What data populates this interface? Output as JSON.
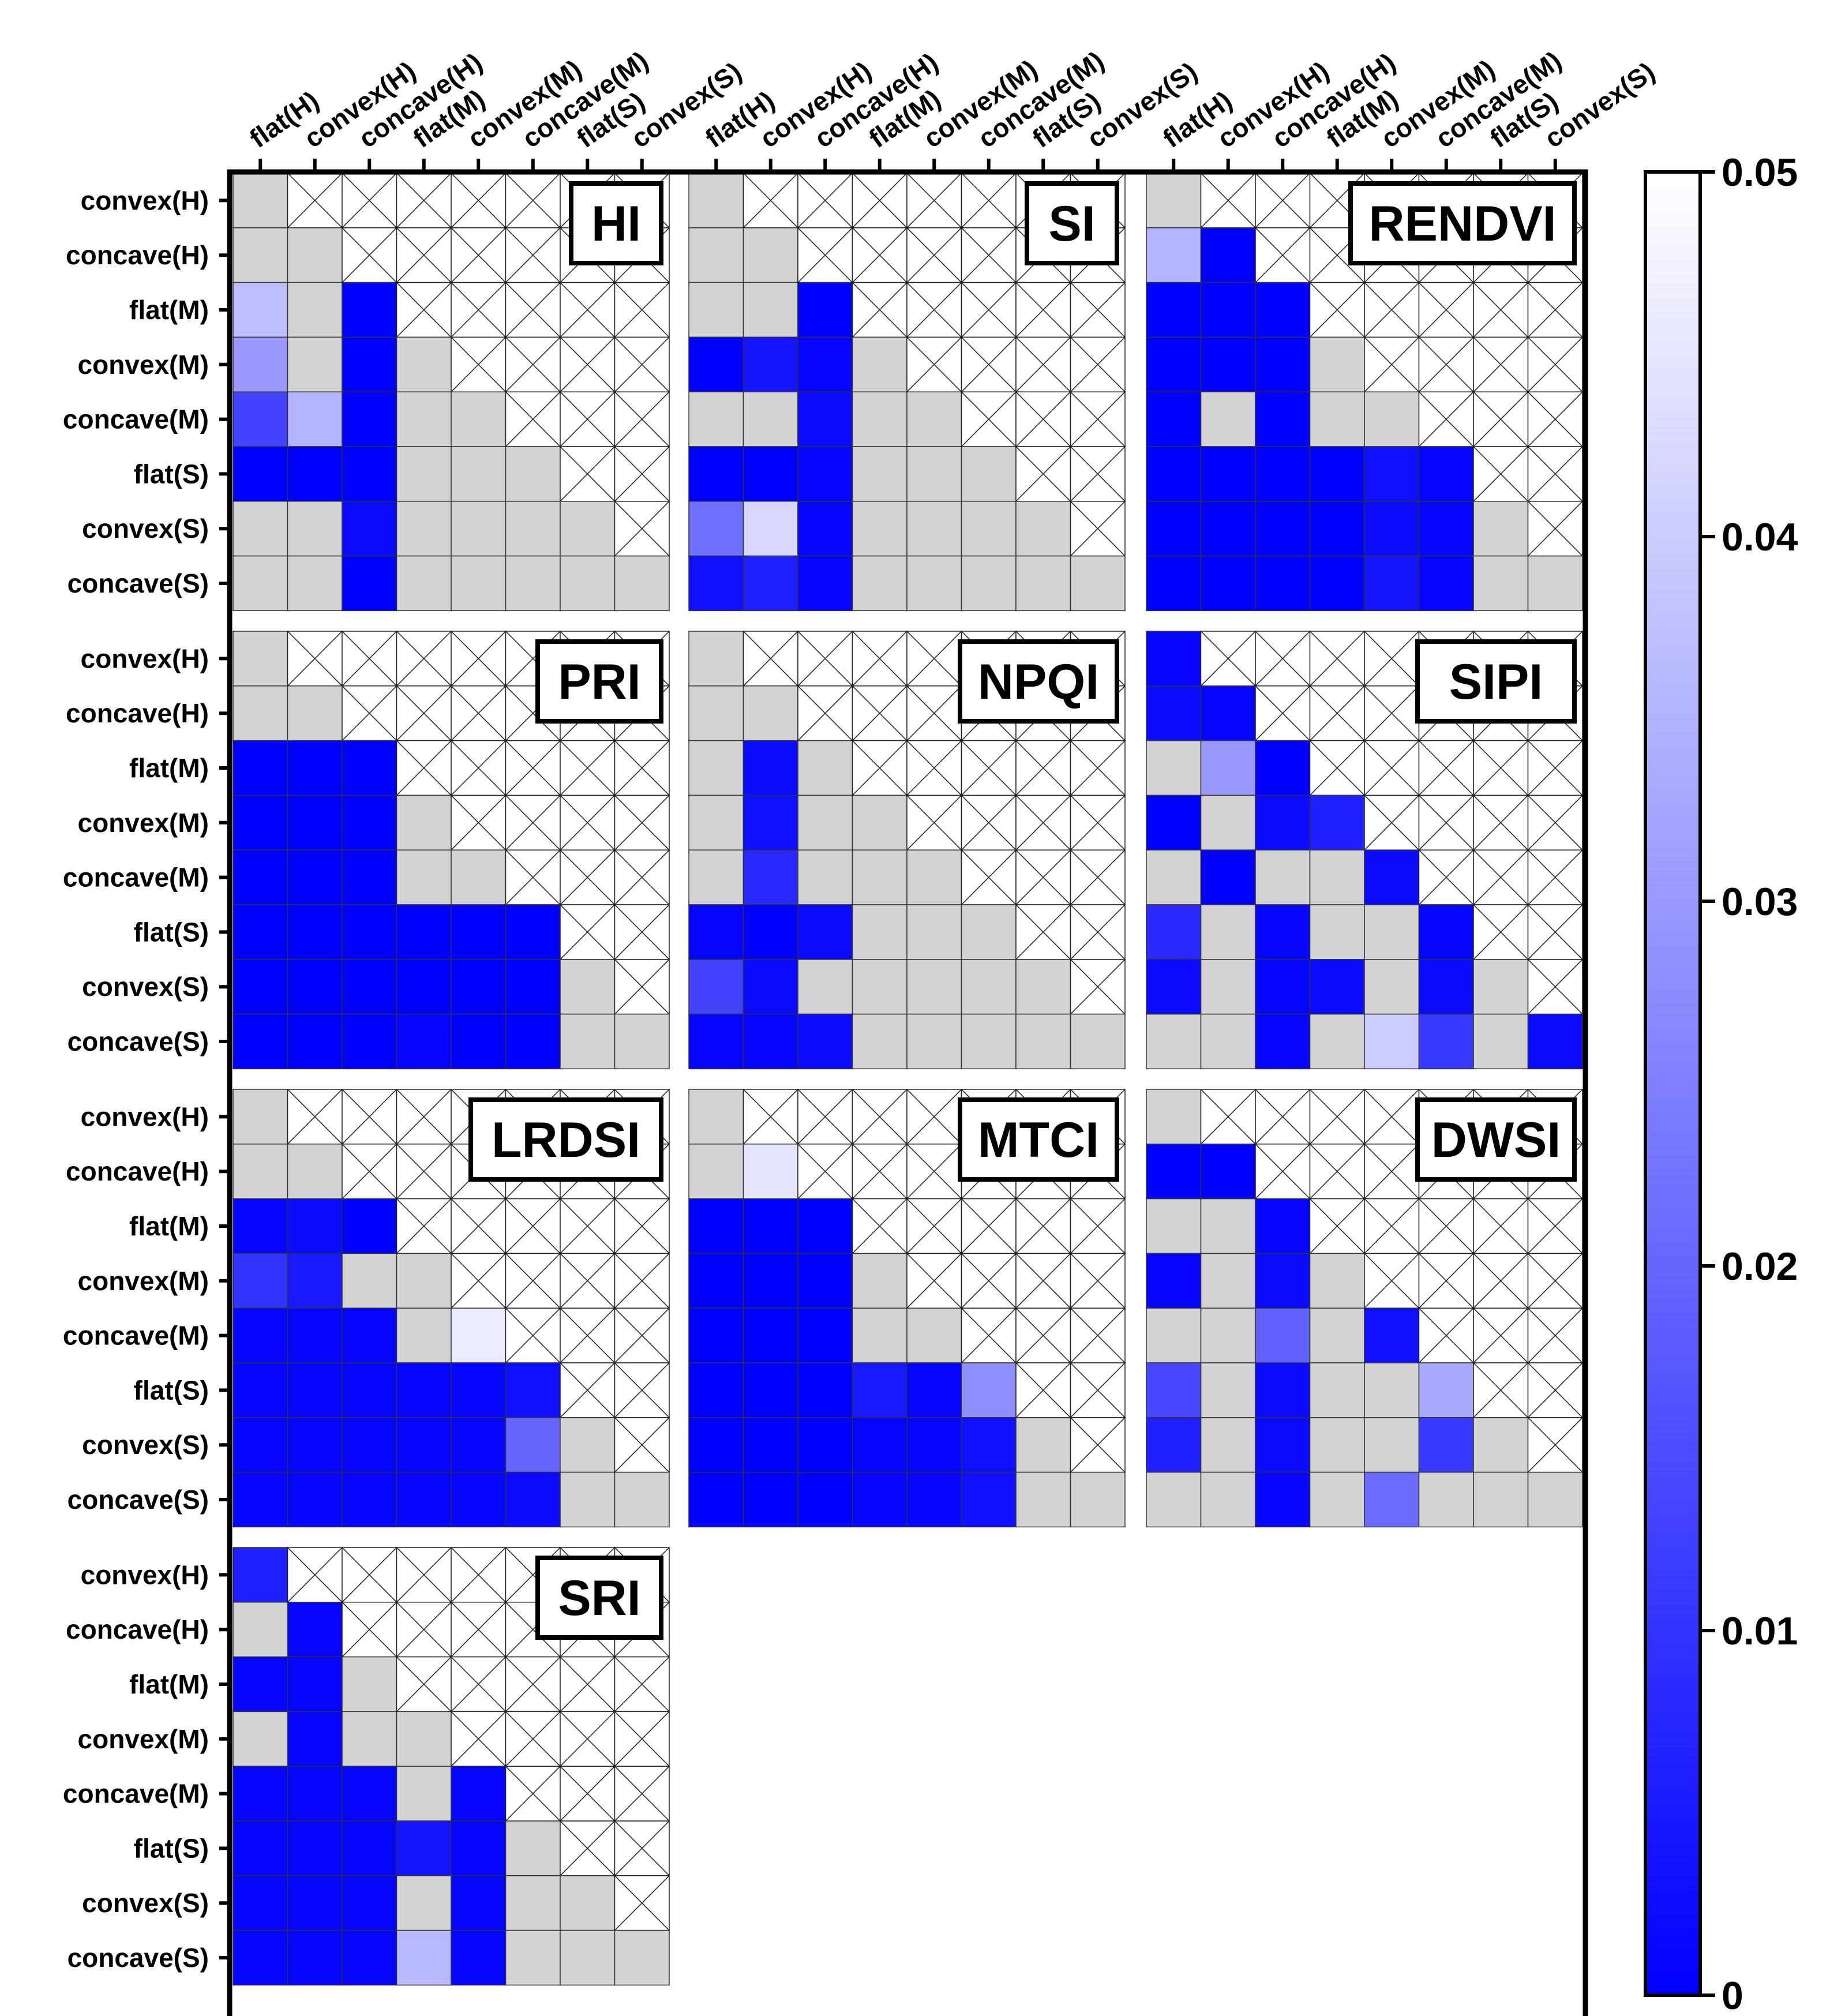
{
  "chart_data": {
    "type": "heatmap",
    "title": "",
    "categories": [
      "flat(H)",
      "convex(H)",
      "concave(H)",
      "flat(M)",
      "convex(M)",
      "concave(M)",
      "flat(S)",
      "convex(S)",
      "concave(S)"
    ],
    "row_labels": [
      "convex(H)",
      "concave(H)",
      "flat(M)",
      "convex(M)",
      "concave(M)",
      "flat(S)",
      "convex(S)",
      "concave(S)"
    ],
    "column_labels": [
      "flat(H)",
      "convex(H)",
      "concave(H)",
      "flat(M)",
      "convex(M)",
      "concave(M)",
      "flat(S)",
      "convex(S)"
    ],
    "colorbar": {
      "min": 0,
      "max": 0.05,
      "ticks": [
        "0",
        "0.01",
        "0.02",
        "0.03",
        "0.04",
        "0.05"
      ],
      "low_color": "#0000ff",
      "high_color": "#ffffff"
    },
    "not_significant_color": "#d3d3d3",
    "value_encoding": "numeric = p-value shown with colour scale; null = grey (not significant); upper triangle = crossed-out (not applicable)",
    "panels": [
      {
        "name": "HI",
        "values": [
          [
            null
          ],
          [
            null,
            null
          ],
          [
            0.037,
            null,
            0
          ],
          [
            0.03,
            null,
            0,
            null
          ],
          [
            0.013,
            0.035,
            0,
            null,
            null
          ],
          [
            0,
            0,
            0,
            null,
            null,
            null
          ],
          [
            null,
            null,
            0.002,
            null,
            null,
            null,
            null
          ],
          [
            null,
            null,
            0,
            null,
            null,
            null,
            null,
            null
          ]
        ]
      },
      {
        "name": "SI",
        "values": [
          [
            null
          ],
          [
            null,
            null
          ],
          [
            null,
            null,
            0
          ],
          [
            0,
            0.004,
            0.001,
            null
          ],
          [
            null,
            null,
            0.002,
            null,
            null
          ],
          [
            0,
            0,
            0.001,
            null,
            null,
            null
          ],
          [
            0.022,
            0.042,
            0.001,
            null,
            null,
            null,
            null
          ],
          [
            0.003,
            0.006,
            0.001,
            null,
            null,
            null,
            null,
            null
          ]
        ]
      },
      {
        "name": "RENDVI",
        "values": [
          [
            null
          ],
          [
            0.035,
            0
          ],
          [
            0,
            0,
            0
          ],
          [
            0,
            0,
            0,
            null
          ],
          [
            0,
            null,
            0,
            null,
            null
          ],
          [
            0,
            0,
            0,
            0,
            0.003,
            0.001
          ],
          [
            0,
            0,
            0,
            0,
            0.002,
            0.001,
            null
          ],
          [
            0,
            0,
            0,
            0,
            0.004,
            0.001,
            null,
            null
          ]
        ]
      },
      {
        "name": "PRI",
        "values": [
          [
            null
          ],
          [
            null,
            null
          ],
          [
            0,
            0,
            0
          ],
          [
            0,
            0,
            0,
            null
          ],
          [
            0,
            0,
            0,
            null,
            null
          ],
          [
            0,
            0,
            0,
            0,
            0,
            0
          ],
          [
            0,
            0,
            0,
            0,
            0,
            0,
            null
          ],
          [
            0,
            0,
            0,
            0.001,
            0,
            0,
            null,
            null
          ]
        ]
      },
      {
        "name": "NPQI",
        "values": [
          [
            null
          ],
          [
            null,
            null
          ],
          [
            null,
            0.002,
            null
          ],
          [
            null,
            0.003,
            null,
            null
          ],
          [
            null,
            0.008,
            null,
            null,
            null
          ],
          [
            0.001,
            0,
            0.002,
            null,
            null,
            null
          ],
          [
            0.013,
            0.002,
            null,
            null,
            null,
            null,
            null
          ],
          [
            0.001,
            0.001,
            0.002,
            null,
            null,
            null,
            null,
            null
          ]
        ]
      },
      {
        "name": "SIPI",
        "values": [
          [
            0.001
          ],
          [
            0.002,
            0.001
          ],
          [
            null,
            0.03,
            0
          ],
          [
            0,
            null,
            0.002,
            0.006
          ],
          [
            null,
            0,
            null,
            null,
            0.002
          ],
          [
            0.008,
            null,
            0.001,
            null,
            null,
            0.001
          ],
          [
            0.002,
            null,
            0.001,
            0.002,
            null,
            0.002,
            null
          ],
          [
            null,
            null,
            0.001,
            null,
            0.04,
            0.011,
            null,
            0.002
          ]
        ]
      },
      {
        "name": "LRDSI",
        "values": [
          [
            null
          ],
          [
            null,
            null
          ],
          [
            0.001,
            0.002,
            0
          ],
          [
            0.01,
            0.005,
            null,
            null
          ],
          [
            0.001,
            0.001,
            0.001,
            null,
            0.046
          ],
          [
            0.001,
            0.001,
            0.001,
            0.001,
            0.001,
            0.003
          ],
          [
            0.001,
            0.001,
            0.001,
            0.001,
            0.001,
            0.02,
            null
          ],
          [
            0.001,
            0.001,
            0.001,
            0.001,
            0.001,
            0.002,
            null,
            null
          ]
        ]
      },
      {
        "name": "MTCI",
        "values": [
          [
            null
          ],
          [
            null,
            0.045
          ],
          [
            0,
            0,
            0
          ],
          [
            0,
            0,
            0,
            null
          ],
          [
            0,
            0,
            0,
            null,
            null
          ],
          [
            0,
            0,
            0,
            0.005,
            0.001,
            0.028
          ],
          [
            0,
            0,
            0,
            0.001,
            0.001,
            0.003,
            null
          ],
          [
            0,
            0,
            0,
            0.001,
            0.001,
            0.003,
            null,
            null
          ]
        ]
      },
      {
        "name": "DWSI",
        "values": [
          [
            null
          ],
          [
            0,
            0
          ],
          [
            null,
            null,
            0.001
          ],
          [
            0.001,
            null,
            0.002,
            null
          ],
          [
            null,
            null,
            0.019,
            null,
            0.003
          ],
          [
            0.014,
            null,
            0.002,
            null,
            null,
            0.033
          ],
          [
            0.006,
            null,
            0.002,
            null,
            null,
            0.011,
            null
          ],
          [
            null,
            null,
            0.001,
            null,
            0.021,
            null,
            null,
            null
          ]
        ]
      },
      {
        "name": "SRI",
        "values": [
          [
            0.006
          ],
          [
            null,
            0.001
          ],
          [
            0.001,
            0.001,
            null
          ],
          [
            null,
            0.001,
            null,
            null
          ],
          [
            0.001,
            0.001,
            0.001,
            null,
            0.001
          ],
          [
            0.001,
            0.001,
            0.001,
            0.004,
            0.001,
            null
          ],
          [
            0.001,
            0.001,
            0.001,
            null,
            0.001,
            null,
            null
          ],
          [
            0.001,
            0.001,
            0.001,
            0.036,
            0.001,
            null,
            null,
            null
          ]
        ]
      }
    ]
  }
}
